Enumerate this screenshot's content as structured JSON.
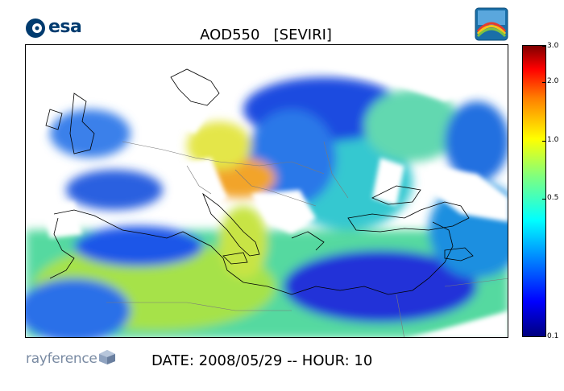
{
  "title": "AOD550   [SEVIRI]",
  "esa_logo_text": "esa",
  "footer": {
    "brand": "rayference",
    "date_label": "DATE: 2008/05/29 -- HOUR: 10"
  },
  "colorbar": {
    "ticks": [
      "3.0",
      "2.0",
      "1.0",
      "0.5",
      "0.1"
    ]
  },
  "colors": {
    "esa_blue": "#003b6f",
    "low": "#00007f",
    "high": "#7f0000"
  }
}
